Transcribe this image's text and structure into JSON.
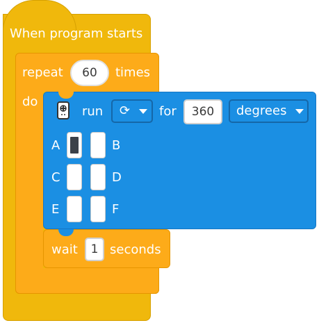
{
  "hat_block": {
    "label": "When program starts"
  },
  "repeat_block": {
    "repeat_label": "repeat",
    "count": "60",
    "times_label": "times",
    "do_label": "do"
  },
  "motor_block": {
    "run_label": "run",
    "direction_icon": "rotate-clockwise-icon",
    "for_label": "for",
    "amount": "360",
    "unit": "degrees",
    "ports": [
      {
        "label": "A",
        "selected": true
      },
      {
        "label": "B",
        "selected": false
      },
      {
        "label": "C",
        "selected": false
      },
      {
        "label": "D",
        "selected": false
      },
      {
        "label": "E",
        "selected": false
      },
      {
        "label": "F",
        "selected": false
      }
    ]
  },
  "wait_block": {
    "wait_label": "wait",
    "value": "1",
    "seconds_label": "seconds"
  },
  "colors": {
    "hat": "#f0b80c",
    "control": "#fdab19",
    "motor": "#1b8fe3"
  }
}
